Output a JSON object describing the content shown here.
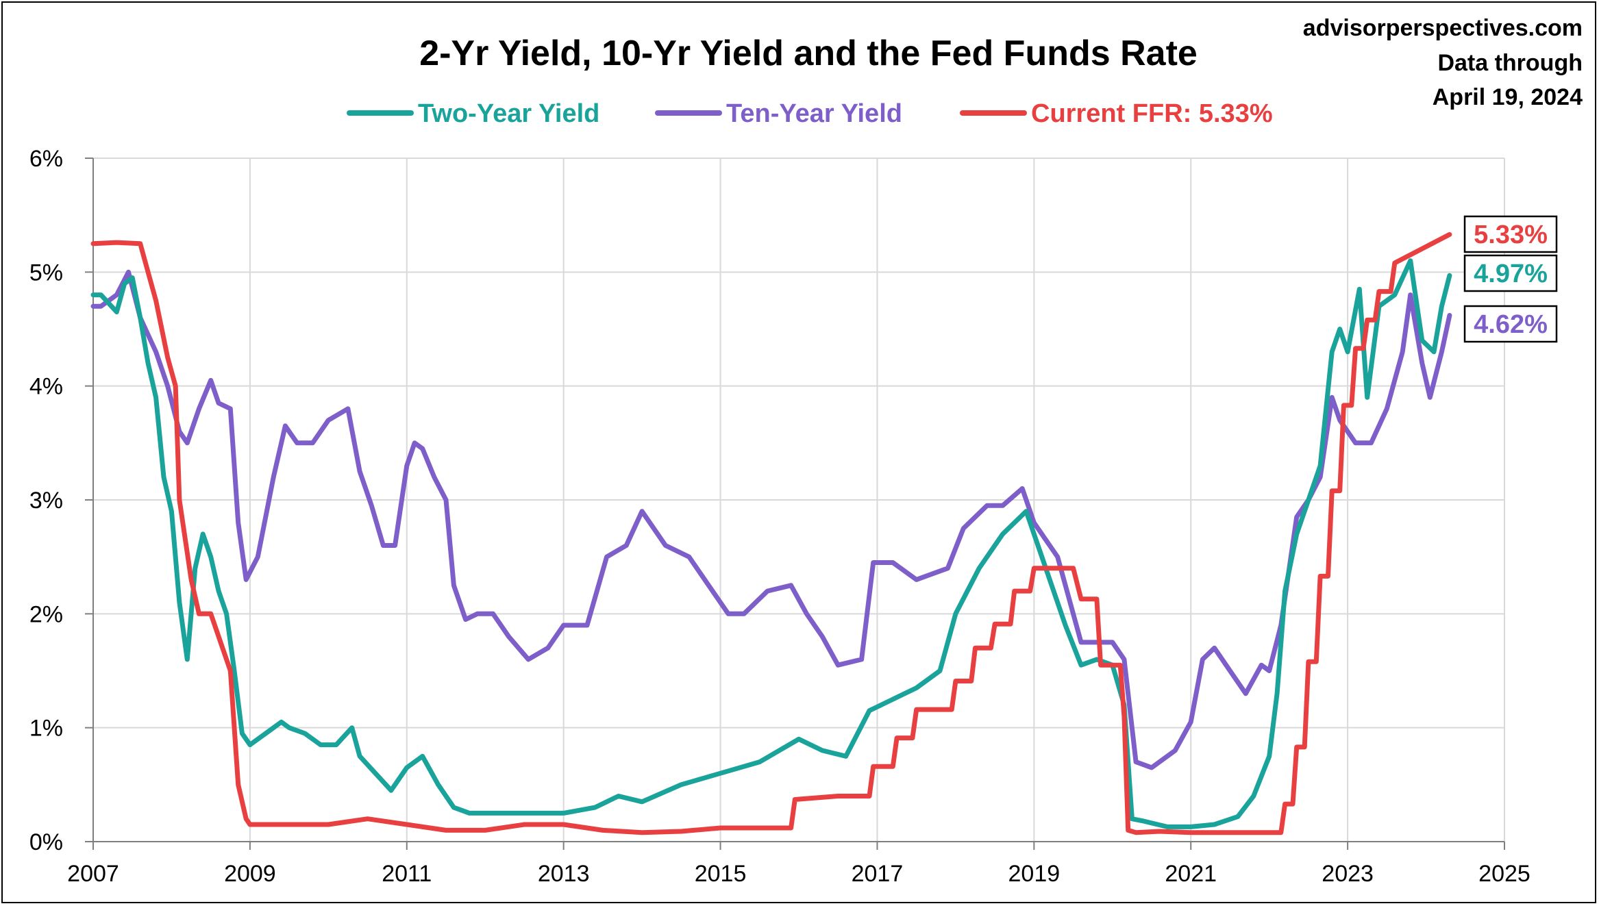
{
  "chart_data": {
    "type": "line",
    "title": "2-Yr Yield, 10-Yr Yield and the Fed Funds Rate",
    "source": "advisorperspectives.com",
    "data_note_line1": "Data through",
    "data_note_line2": "April 19, 2024",
    "xlim": [
      2007,
      2025
    ],
    "ylim": [
      0,
      6
    ],
    "x_ticks": [
      2007,
      2009,
      2011,
      2013,
      2015,
      2017,
      2019,
      2021,
      2023,
      2025
    ],
    "x_tick_labels": [
      "2007",
      "2009",
      "2011",
      "2013",
      "2015",
      "2017",
      "2019",
      "2021",
      "2023",
      "2025"
    ],
    "y_ticks": [
      0,
      1,
      2,
      3,
      4,
      5,
      6
    ],
    "y_tick_labels": [
      "0%",
      "1%",
      "2%",
      "3%",
      "4%",
      "5%",
      "6%"
    ],
    "grid": true,
    "legend_position": "top-center",
    "end_labels": [
      {
        "text": "5.33%",
        "color": "#e84040",
        "value": 5.33
      },
      {
        "text": "4.97%",
        "color": "#1aa39a",
        "value": 4.97
      },
      {
        "text": "4.62%",
        "color": "#7e5fc9",
        "value": 4.62
      }
    ],
    "series": [
      {
        "name": "Two-Year Yield",
        "color": "#1aa39a",
        "x": [
          2007.0,
          2007.1,
          2007.3,
          2007.4,
          2007.5,
          2007.6,
          2007.7,
          2007.8,
          2007.9,
          2008.0,
          2008.1,
          2008.2,
          2008.3,
          2008.4,
          2008.5,
          2008.6,
          2008.7,
          2008.8,
          2008.9,
          2009.0,
          2009.2,
          2009.4,
          2009.5,
          2009.7,
          2009.9,
          2010.1,
          2010.3,
          2010.4,
          2010.6,
          2010.8,
          2011.0,
          2011.2,
          2011.4,
          2011.6,
          2011.8,
          2012.0,
          2012.5,
          2013.0,
          2013.4,
          2013.7,
          2014.0,
          2014.5,
          2015.0,
          2015.5,
          2016.0,
          2016.3,
          2016.6,
          2016.9,
          2017.2,
          2017.5,
          2017.8,
          2018.0,
          2018.3,
          2018.6,
          2018.9,
          2019.1,
          2019.4,
          2019.6,
          2019.8,
          2020.0,
          2020.15,
          2020.25,
          2020.4,
          2020.7,
          2021.0,
          2021.3,
          2021.6,
          2021.8,
          2022.0,
          2022.1,
          2022.2,
          2022.35,
          2022.5,
          2022.65,
          2022.8,
          2022.9,
          2023.0,
          2023.15,
          2023.25,
          2023.4,
          2023.6,
          2023.8,
          2023.95,
          2024.1,
          2024.2,
          2024.3
        ],
        "y": [
          4.8,
          4.8,
          4.65,
          4.9,
          4.95,
          4.6,
          4.2,
          3.9,
          3.2,
          2.9,
          2.1,
          1.6,
          2.4,
          2.7,
          2.5,
          2.2,
          2.0,
          1.5,
          0.95,
          0.85,
          0.95,
          1.05,
          1.0,
          0.95,
          0.85,
          0.85,
          1.0,
          0.75,
          0.6,
          0.45,
          0.65,
          0.75,
          0.5,
          0.3,
          0.25,
          0.25,
          0.25,
          0.25,
          0.3,
          0.4,
          0.35,
          0.5,
          0.6,
          0.7,
          0.9,
          0.8,
          0.75,
          1.15,
          1.25,
          1.35,
          1.5,
          2.0,
          2.4,
          2.7,
          2.9,
          2.5,
          1.9,
          1.55,
          1.6,
          1.55,
          1.2,
          0.2,
          0.18,
          0.13,
          0.13,
          0.15,
          0.22,
          0.4,
          0.75,
          1.3,
          2.2,
          2.7,
          3.0,
          3.3,
          4.3,
          4.5,
          4.3,
          4.85,
          3.9,
          4.7,
          4.8,
          5.1,
          4.4,
          4.3,
          4.7,
          4.97
        ]
      },
      {
        "name": "Ten-Year Yield",
        "color": "#7e5fc9",
        "x": [
          2007.0,
          2007.1,
          2007.3,
          2007.45,
          2007.6,
          2007.8,
          2007.95,
          2008.1,
          2008.2,
          2008.35,
          2008.5,
          2008.6,
          2008.75,
          2008.85,
          2008.95,
          2009.1,
          2009.3,
          2009.45,
          2009.6,
          2009.8,
          2010.0,
          2010.25,
          2010.4,
          2010.55,
          2010.7,
          2010.85,
          2011.0,
          2011.1,
          2011.2,
          2011.35,
          2011.5,
          2011.6,
          2011.75,
          2011.9,
          2012.1,
          2012.3,
          2012.55,
          2012.8,
          2013.0,
          2013.3,
          2013.55,
          2013.8,
          2014.0,
          2014.3,
          2014.6,
          2014.85,
          2015.1,
          2015.3,
          2015.6,
          2015.9,
          2016.1,
          2016.3,
          2016.5,
          2016.8,
          2016.95,
          2017.2,
          2017.5,
          2017.7,
          2017.9,
          2018.1,
          2018.4,
          2018.6,
          2018.85,
          2019.0,
          2019.3,
          2019.6,
          2019.8,
          2020.0,
          2020.15,
          2020.3,
          2020.5,
          2020.8,
          2021.0,
          2021.15,
          2021.3,
          2021.5,
          2021.7,
          2021.9,
          2022.0,
          2022.15,
          2022.35,
          2022.5,
          2022.65,
          2022.8,
          2022.9,
          2023.1,
          2023.3,
          2023.5,
          2023.7,
          2023.8,
          2023.95,
          2024.05,
          2024.2,
          2024.3
        ],
        "y": [
          4.7,
          4.7,
          4.8,
          5.0,
          4.6,
          4.3,
          4.0,
          3.6,
          3.5,
          3.8,
          4.05,
          3.85,
          3.8,
          2.8,
          2.3,
          2.5,
          3.2,
          3.65,
          3.5,
          3.5,
          3.7,
          3.8,
          3.25,
          2.95,
          2.6,
          2.6,
          3.3,
          3.5,
          3.45,
          3.2,
          3.0,
          2.25,
          1.95,
          2.0,
          2.0,
          1.8,
          1.6,
          1.7,
          1.9,
          1.9,
          2.5,
          2.6,
          2.9,
          2.6,
          2.5,
          2.25,
          2.0,
          2.0,
          2.2,
          2.25,
          2.0,
          1.8,
          1.55,
          1.6,
          2.45,
          2.45,
          2.3,
          2.35,
          2.4,
          2.75,
          2.95,
          2.95,
          3.1,
          2.8,
          2.5,
          1.75,
          1.75,
          1.75,
          1.6,
          0.7,
          0.65,
          0.8,
          1.05,
          1.6,
          1.7,
          1.5,
          1.3,
          1.55,
          1.5,
          1.9,
          2.85,
          3.0,
          3.2,
          3.9,
          3.7,
          3.5,
          3.5,
          3.8,
          4.3,
          4.8,
          4.2,
          3.9,
          4.3,
          4.62
        ]
      },
      {
        "name": "Current FFR: 5.33%",
        "color": "#e84040",
        "x": [
          2007.0,
          2007.3,
          2007.6,
          2007.7,
          2007.8,
          2007.95,
          2008.05,
          2008.1,
          2008.25,
          2008.35,
          2008.5,
          2008.75,
          2008.85,
          2008.95,
          2009.0,
          2009.5,
          2010.0,
          2010.5,
          2011.0,
          2011.5,
          2012.0,
          2012.5,
          2013.0,
          2013.5,
          2014.0,
          2014.5,
          2015.0,
          2015.9,
          2015.95,
          2016.5,
          2016.9,
          2016.95,
          2017.2,
          2017.25,
          2017.45,
          2017.5,
          2017.95,
          2018.0,
          2018.2,
          2018.25,
          2018.45,
          2018.5,
          2018.7,
          2018.75,
          2018.95,
          2019.0,
          2019.5,
          2019.6,
          2019.8,
          2019.85,
          2020.1,
          2020.15,
          2020.2,
          2020.3,
          2020.6,
          2021.0,
          2021.5,
          2022.0,
          2022.15,
          2022.2,
          2022.3,
          2022.35,
          2022.45,
          2022.5,
          2022.6,
          2022.65,
          2022.75,
          2022.8,
          2022.9,
          2022.95,
          2023.05,
          2023.1,
          2023.2,
          2023.25,
          2023.35,
          2023.4,
          2023.55,
          2023.6,
          2024.3
        ],
        "y": [
          5.25,
          5.26,
          5.25,
          5.0,
          4.75,
          4.25,
          4.0,
          3.0,
          2.3,
          2.0,
          2.0,
          1.5,
          0.5,
          0.2,
          0.15,
          0.15,
          0.15,
          0.2,
          0.15,
          0.1,
          0.1,
          0.15,
          0.15,
          0.1,
          0.08,
          0.09,
          0.12,
          0.12,
          0.37,
          0.4,
          0.4,
          0.66,
          0.66,
          0.91,
          0.91,
          1.16,
          1.16,
          1.41,
          1.41,
          1.7,
          1.7,
          1.91,
          1.91,
          2.2,
          2.2,
          2.4,
          2.4,
          2.13,
          2.13,
          1.55,
          1.55,
          1.1,
          0.1,
          0.08,
          0.09,
          0.08,
          0.08,
          0.08,
          0.08,
          0.33,
          0.33,
          0.83,
          0.83,
          1.58,
          1.58,
          2.33,
          2.33,
          3.08,
          3.08,
          3.83,
          3.83,
          4.33,
          4.33,
          4.58,
          4.58,
          4.83,
          4.83,
          5.08,
          5.33
        ]
      }
    ]
  }
}
